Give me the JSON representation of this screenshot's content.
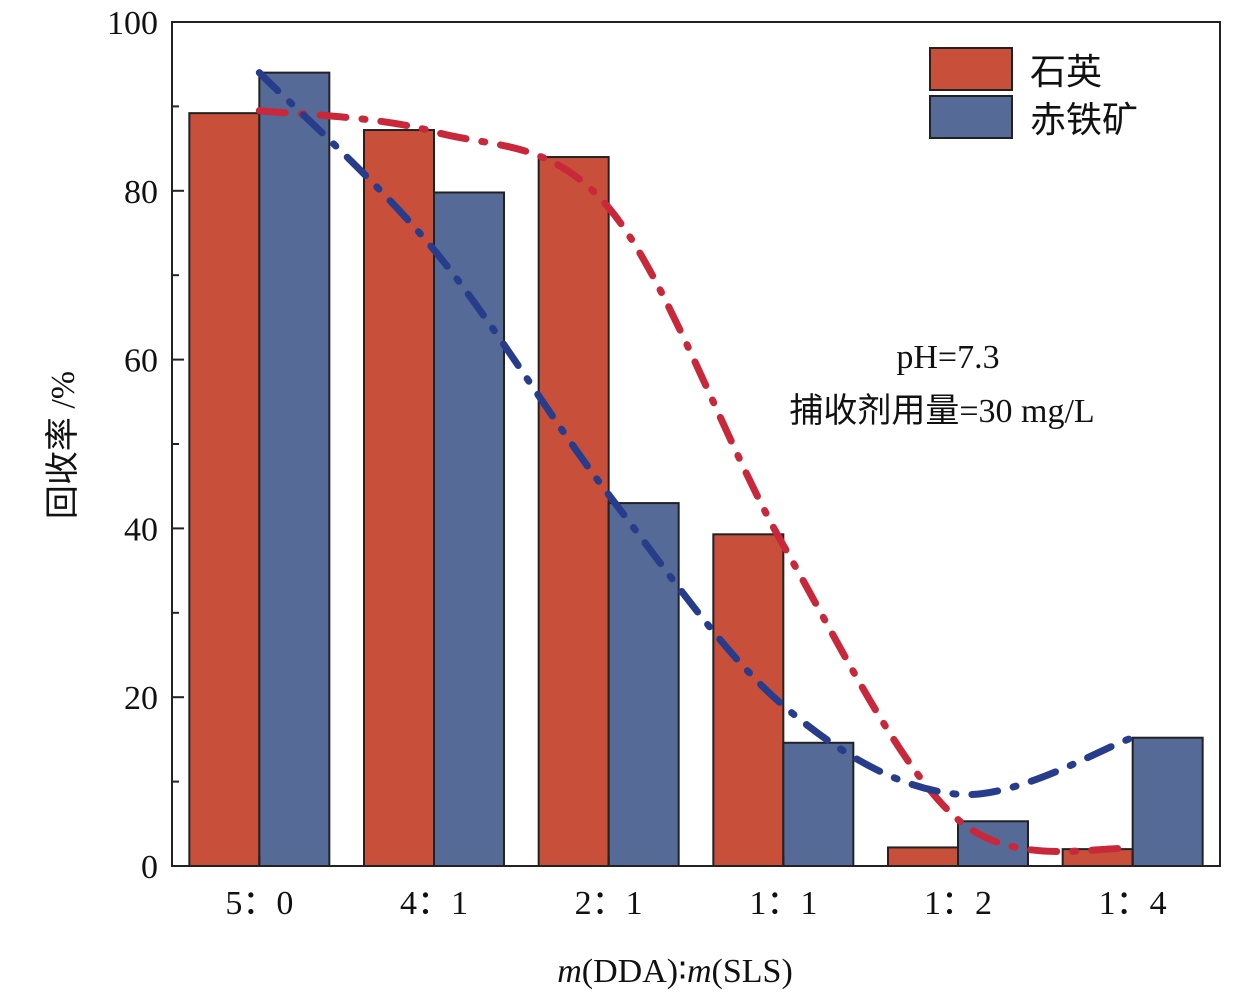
{
  "colors": {
    "quartz_bar": "#C8503A",
    "hematite_bar": "#556A96",
    "quartz_line": "#C8283A",
    "hematite_line": "#283C8C",
    "axis": "#222222"
  },
  "chart_data": {
    "type": "bar",
    "categories": [
      "5：0",
      "4：1",
      "2：1",
      "1：1",
      "1：2",
      "1：4"
    ],
    "series": [
      {
        "name": "石英",
        "values": [
          89.2,
          87.2,
          84.0,
          39.3,
          2.2,
          2.0
        ]
      },
      {
        "name": "赤铁矿",
        "values": [
          94.0,
          79.8,
          43.0,
          14.6,
          5.3,
          15.2
        ]
      }
    ],
    "trend_lines": [
      {
        "series": "石英",
        "style": "dash-dot",
        "values": [
          89.5,
          87.0,
          78.0,
          38.0,
          5.5,
          2.0
        ]
      },
      {
        "series": "赤铁矿",
        "style": "dash-dot",
        "values": [
          94.0,
          73.0,
          44.0,
          19.0,
          8.5,
          15.2
        ]
      }
    ],
    "xlabel_parts": [
      "m",
      "(DDA)",
      "∶",
      "m",
      "(SLS)"
    ],
    "ylabel": "回收率 /%",
    "ylim": [
      0,
      100
    ],
    "yticks": [
      0,
      20,
      40,
      60,
      80,
      100
    ],
    "annotations": [
      "pH=7.3",
      "捕收剂用量=30 mg/L"
    ],
    "legend_position": "top-right",
    "grid": false
  }
}
